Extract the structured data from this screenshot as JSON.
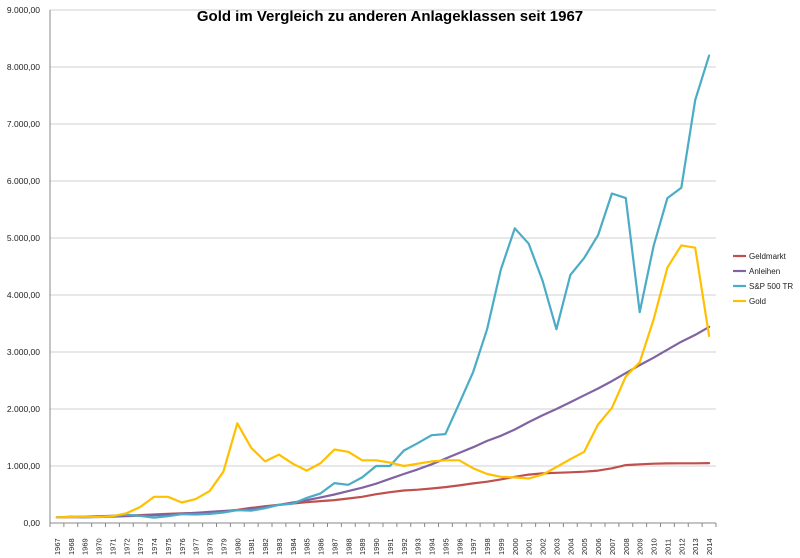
{
  "chart_data": {
    "type": "line",
    "title": "Gold im Vergleich zu anderen Anlageklassen seit 1967",
    "xlabel": "",
    "ylabel": "",
    "ylim": [
      0,
      9000
    ],
    "yticks": [
      0,
      1000,
      2000,
      3000,
      4000,
      5000,
      6000,
      7000,
      8000,
      9000
    ],
    "ytick_labels": [
      "0,00",
      "1.000,00",
      "2.000,00",
      "3.000,00",
      "4.000,00",
      "5.000,00",
      "6.000,00",
      "7.000,00",
      "8.000,00",
      "9.000,00"
    ],
    "grid": true,
    "legend_position": "right",
    "x": [
      "1967",
      "1968",
      "1969",
      "1970",
      "1971",
      "1972",
      "1973",
      "1974",
      "1975",
      "1976",
      "1977",
      "1978",
      "1979",
      "1980",
      "1981",
      "1982",
      "1983",
      "1984",
      "1985",
      "1986",
      "1987",
      "1988",
      "1989",
      "1990",
      "1991",
      "1992",
      "1993",
      "1994",
      "1995",
      "1996",
      "1997",
      "1998",
      "1999",
      "2000",
      "2001",
      "2002",
      "2003",
      "2004",
      "2005",
      "2006",
      "2007",
      "2008",
      "2009",
      "2010",
      "2011",
      "2012",
      "2013",
      "2014"
    ],
    "series": [
      {
        "name": "Geldmarkt",
        "color": "#c0504d",
        "values": [
          100,
          105,
          112,
          120,
          125,
          130,
          138,
          150,
          160,
          168,
          176,
          188,
          205,
          230,
          265,
          295,
          318,
          342,
          365,
          385,
          402,
          430,
          460,
          505,
          540,
          570,
          585,
          605,
          630,
          660,
          695,
          725,
          765,
          810,
          850,
          870,
          880,
          890,
          900,
          920,
          960,
          1015,
          1030,
          1040,
          1045,
          1047,
          1048,
          1050
        ]
      },
      {
        "name": "Anleihen",
        "color": "#8064a2",
        "values": [
          100,
          102,
          100,
          105,
          112,
          120,
          128,
          138,
          150,
          165,
          178,
          195,
          210,
          225,
          245,
          280,
          320,
          360,
          400,
          450,
          500,
          560,
          620,
          690,
          775,
          860,
          940,
          1030,
          1130,
          1230,
          1330,
          1440,
          1530,
          1640,
          1770,
          1890,
          2000,
          2120,
          2240,
          2360,
          2490,
          2630,
          2770,
          2900,
          3040,
          3180,
          3300,
          3440
        ]
      },
      {
        "name": "S&P 500 TR",
        "color": "#4bacc6",
        "values": [
          100,
          110,
          102,
          108,
          122,
          145,
          125,
          95,
          120,
          155,
          150,
          160,
          185,
          225,
          215,
          260,
          320,
          340,
          440,
          520,
          700,
          670,
          800,
          1000,
          1000,
          1270,
          1400,
          1540,
          1560,
          2100,
          2650,
          3400,
          4450,
          5170,
          4900,
          4250,
          3400,
          4350,
          4650,
          5050,
          5780,
          5700,
          3700,
          4860,
          5700,
          5880,
          7420,
          8200
        ]
      },
      {
        "name": "Gold",
        "color": "#ffc000",
        "values": [
          100,
          105,
          110,
          105,
          120,
          170,
          280,
          460,
          460,
          360,
          420,
          560,
          900,
          1750,
          1320,
          1080,
          1200,
          1040,
          920,
          1050,
          1290,
          1250,
          1100,
          1100,
          1060,
          1000,
          1040,
          1080,
          1100,
          1100,
          960,
          860,
          810,
          800,
          780,
          850,
          980,
          1120,
          1250,
          1730,
          2020,
          2570,
          2820,
          3570,
          4480,
          4870,
          4830,
          3280
        ]
      }
    ]
  }
}
